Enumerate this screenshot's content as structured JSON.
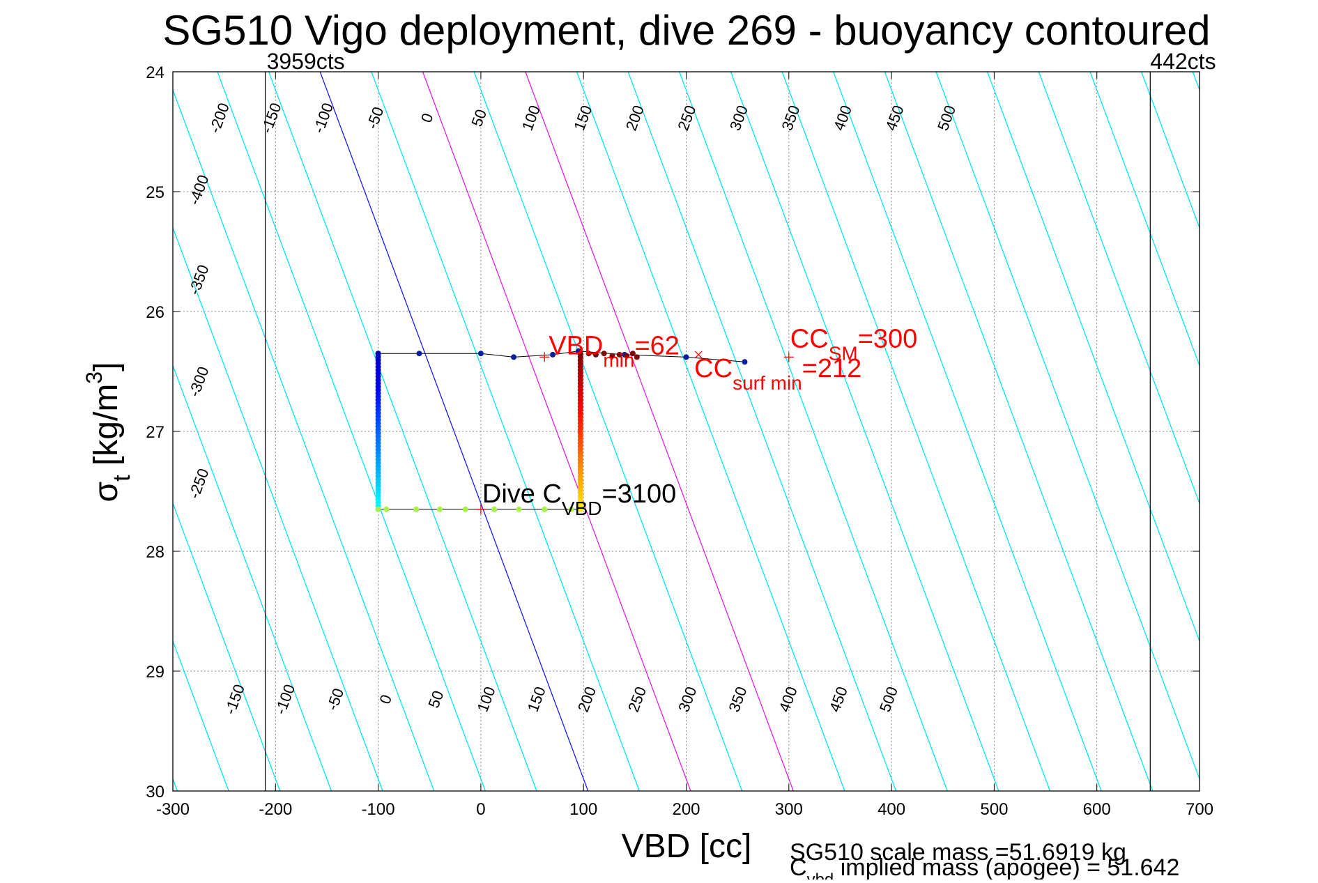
{
  "chart_data": {
    "type": "line",
    "title": "SG510 Vigo deployment, dive 269 - buoyancy contoured",
    "xlabel": "VBD [cc]",
    "ylabel_main": "σ",
    "ylabel_sub": "t",
    "ylabel_rest": " [kg/m",
    "ylabel_sup": "3",
    "ylabel_close": "]",
    "xlim": [
      -300,
      700
    ],
    "ylim": [
      24,
      30
    ],
    "y_reversed": true,
    "xticks": [
      -300,
      -200,
      -100,
      0,
      100,
      200,
      300,
      400,
      500,
      600,
      700
    ],
    "yticks": [
      24,
      25,
      26,
      27,
      28,
      29,
      30
    ],
    "grid": true,
    "counts_lines": [
      {
        "x": -210,
        "label": "3959cts"
      },
      {
        "x": 652,
        "label": "442cts"
      }
    ],
    "buoyancy_contours": {
      "slope_cc_per_sigma": 43.5,
      "ref_sigma": 27.6,
      "cyan_offsets": [
        -450,
        -400,
        -350,
        -300,
        -250,
        -200,
        -150,
        -100,
        -50,
        50,
        150,
        250,
        300,
        350,
        400,
        450,
        500,
        550,
        600,
        650,
        700,
        750,
        800,
        850,
        900,
        950
      ],
      "blue_offsets": [
        0
      ],
      "magenta_offsets": [
        100,
        200
      ],
      "top_labels": [
        "-400",
        "-350",
        "-300",
        "-250",
        "-200",
        "-150",
        "-100",
        "-50",
        "0",
        "50",
        "100",
        "150",
        "200",
        "250",
        "300",
        "350",
        "400",
        "450",
        "500"
      ],
      "top_label_values": [
        -400,
        -350,
        -300,
        -250,
        -200,
        -150,
        -100,
        -50,
        0,
        50,
        100,
        150,
        200,
        250,
        300,
        350,
        400,
        450,
        500
      ],
      "bottom_labels": [
        "-150",
        "-100",
        "-50",
        "0",
        "50",
        "100",
        "150",
        "200",
        "250",
        "300",
        "350",
        "400",
        "450",
        "500"
      ],
      "bottom_label_values": [
        -150,
        -100,
        -50,
        0,
        50,
        100,
        150,
        200,
        250,
        300,
        350,
        400,
        450,
        500
      ]
    },
    "dive_trace": {
      "top_row": {
        "sigma": [
          26.35,
          26.35,
          26.35,
          26.38,
          26.36,
          26.33,
          26.36,
          26.38,
          26.42
        ],
        "vbd": [
          -100,
          -60,
          0,
          32,
          70,
          95,
          140,
          200,
          257
        ]
      },
      "descent_column": {
        "vbd": -100,
        "sigma_start": 26.35,
        "sigma_end": 27.65
      },
      "bottom_row": {
        "sigma": 27.65,
        "vbd": [
          -100,
          -92,
          -63,
          -40,
          -15,
          13,
          37,
          62,
          88
        ]
      },
      "ascent_column": {
        "vbd": 97,
        "sigma_start": 27.65,
        "sigma_end": 26.35
      },
      "ascent_top_points": {
        "vbd": [
          105,
          112,
          120,
          128,
          135,
          142,
          148,
          152
        ],
        "sigma": [
          26.35,
          26.36,
          26.35,
          26.37,
          26.36,
          26.37,
          26.35,
          26.38
        ]
      }
    },
    "annotations": {
      "vbd_min": {
        "main": "VBD",
        "sub": "min",
        "value": "=62",
        "x": 62,
        "y": 26.38
      },
      "cc_surf_min": {
        "main": "CC",
        "sub": "surf min",
        "value": "=212",
        "x": 212,
        "y": 26.36
      },
      "cc_sm": {
        "main": "CC",
        "sub": "SM",
        "value": "=300",
        "x": 300,
        "y": 26.38
      },
      "dive_cvbd": {
        "main": "Dive C",
        "sub": "VBD",
        "value": "=3100",
        "x": 0,
        "y": 27.65
      }
    },
    "footer": {
      "scale_mass": "SG510 scale mass =51.6919 kg",
      "implied_main": "C",
      "implied_sub": "vbd",
      "implied_rest": " implied mass (apogee) = 51.642"
    }
  }
}
